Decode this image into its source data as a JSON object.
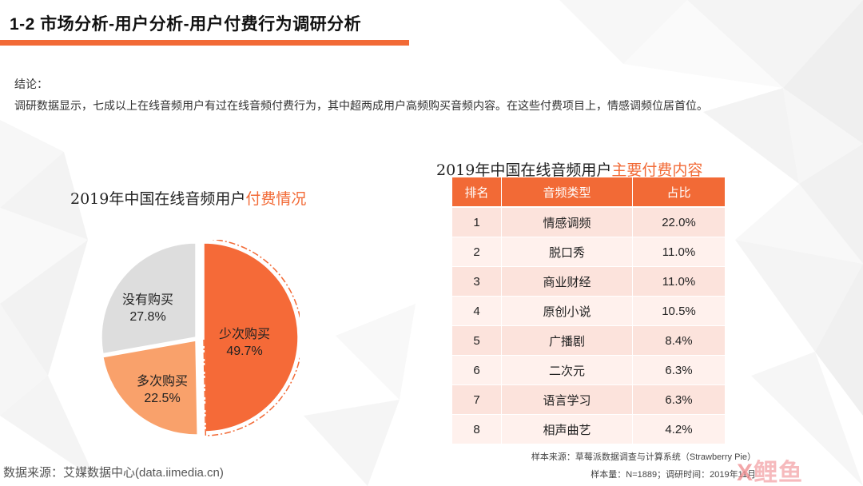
{
  "header": {
    "title": "1-2 市场分析-用户分析-用户付费行为调研分析"
  },
  "conclusion": {
    "label": "结论：",
    "text": "调研数据显示，七成以上在线音频用户有过在线音频付费行为，其中超两成用户高频购买音频内容。在这些付费项目上，情感调频位居首位。"
  },
  "pie": {
    "title_prefix": "2019年中国在线音频用户",
    "title_highlight": "付费情况",
    "slices": [
      {
        "name": "少次购买",
        "value_label": "49.7%",
        "value": 49.7,
        "color": "#f56a38"
      },
      {
        "name": "多次购买",
        "value_label": "22.5%",
        "value": 22.5,
        "color": "#f9a16b"
      },
      {
        "name": "没有购买",
        "value_label": "27.8%",
        "value": 27.8,
        "color": "#dddddd"
      }
    ]
  },
  "table": {
    "title_prefix": "2019年中国在线音频用户",
    "title_highlight": "主要付费内容",
    "headers": [
      "排名",
      "音频类型",
      "占比"
    ],
    "rows": [
      [
        "1",
        "情感调频",
        "22.0%"
      ],
      [
        "2",
        "脱口秀",
        "11.0%"
      ],
      [
        "3",
        "商业财经",
        "11.0%"
      ],
      [
        "4",
        "原创小说",
        "10.5%"
      ],
      [
        "5",
        "广播剧",
        "8.4%"
      ],
      [
        "6",
        "二次元",
        "6.3%"
      ],
      [
        "7",
        "语言学习",
        "6.3%"
      ],
      [
        "8",
        "相声曲艺",
        "4.2%"
      ]
    ]
  },
  "footer": {
    "source": "数据来源：艾媒数据中心(data.iimedia.cn)",
    "sample_source": "样本来源：草莓派数据调查与计算系统（Strawberry Pie）",
    "sample_size": "样本量：N=1889；调研时间：2019年11月"
  },
  "watermark": {
    "prefix": "X",
    "text": "鲤鱼"
  },
  "colors": {
    "accent": "#f26a36",
    "row_light": "#fff1ed",
    "row_dark": "#fce3dc"
  }
}
